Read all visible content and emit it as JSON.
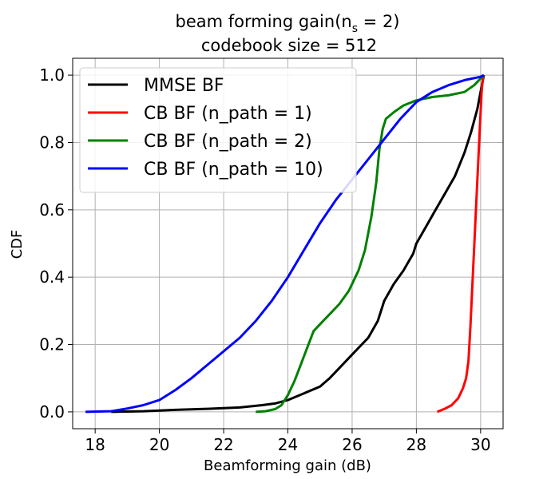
{
  "chart_data": {
    "type": "line",
    "title_prefix": "beam forming gain(n",
    "title_sub": "s",
    "title_suffix": " = 2)",
    "subtitle": "codebook size = 512",
    "xlabel": "Beamforming gain (dB)",
    "ylabel": "CDF",
    "xlim": [
      17.3,
      30.7
    ],
    "ylim": [
      -0.05,
      1.05
    ],
    "xticks": [
      18,
      20,
      22,
      24,
      26,
      28,
      30
    ],
    "yticks": [
      0.0,
      0.2,
      0.4,
      0.6,
      0.8,
      1.0
    ],
    "xtick_labels": [
      "18",
      "20",
      "22",
      "24",
      "26",
      "28",
      "30"
    ],
    "ytick_labels": [
      "0.0",
      "0.2",
      "0.4",
      "0.6",
      "0.8",
      "1.0"
    ],
    "grid": true,
    "legend_position": "upper-left",
    "series": [
      {
        "name": "MMSE BF",
        "color": "#000000",
        "points": [
          [
            18.5,
            0.0
          ],
          [
            19.5,
            0.002
          ],
          [
            20.5,
            0.006
          ],
          [
            21.5,
            0.009
          ],
          [
            22.5,
            0.013
          ],
          [
            23.2,
            0.02
          ],
          [
            23.6,
            0.025
          ],
          [
            24.0,
            0.035
          ],
          [
            24.5,
            0.055
          ],
          [
            25.0,
            0.075
          ],
          [
            25.3,
            0.1
          ],
          [
            25.6,
            0.13
          ],
          [
            26.0,
            0.17
          ],
          [
            26.5,
            0.22
          ],
          [
            26.8,
            0.27
          ],
          [
            27.0,
            0.33
          ],
          [
            27.3,
            0.38
          ],
          [
            27.6,
            0.42
          ],
          [
            27.9,
            0.47
          ],
          [
            28.0,
            0.5
          ],
          [
            28.3,
            0.55
          ],
          [
            28.6,
            0.6
          ],
          [
            28.9,
            0.65
          ],
          [
            29.2,
            0.7
          ],
          [
            29.5,
            0.77
          ],
          [
            29.7,
            0.83
          ],
          [
            29.9,
            0.9
          ],
          [
            30.0,
            0.95
          ],
          [
            30.1,
            1.0
          ]
        ]
      },
      {
        "name": "CB BF (n_path = 1)",
        "color": "#ff0000",
        "points": [
          [
            28.65,
            0.0
          ],
          [
            28.9,
            0.01
          ],
          [
            29.1,
            0.02
          ],
          [
            29.3,
            0.04
          ],
          [
            29.45,
            0.07
          ],
          [
            29.55,
            0.1
          ],
          [
            29.62,
            0.15
          ],
          [
            29.68,
            0.25
          ],
          [
            29.73,
            0.35
          ],
          [
            29.78,
            0.45
          ],
          [
            29.83,
            0.55
          ],
          [
            29.88,
            0.65
          ],
          [
            29.93,
            0.75
          ],
          [
            29.98,
            0.85
          ],
          [
            30.03,
            0.95
          ],
          [
            30.08,
            1.0
          ]
        ]
      },
      {
        "name": "CB BF (n_path = 2)",
        "color": "#008000",
        "points": [
          [
            23.0,
            0.0
          ],
          [
            23.3,
            0.002
          ],
          [
            23.6,
            0.008
          ],
          [
            23.8,
            0.02
          ],
          [
            24.0,
            0.05
          ],
          [
            24.2,
            0.09
          ],
          [
            24.4,
            0.14
          ],
          [
            24.6,
            0.19
          ],
          [
            24.8,
            0.24
          ],
          [
            25.0,
            0.26
          ],
          [
            25.3,
            0.29
          ],
          [
            25.6,
            0.32
          ],
          [
            25.9,
            0.36
          ],
          [
            26.2,
            0.42
          ],
          [
            26.4,
            0.48
          ],
          [
            26.6,
            0.58
          ],
          [
            26.75,
            0.68
          ],
          [
            26.85,
            0.78
          ],
          [
            26.95,
            0.84
          ],
          [
            27.05,
            0.87
          ],
          [
            27.3,
            0.89
          ],
          [
            27.6,
            0.91
          ],
          [
            28.0,
            0.925
          ],
          [
            28.5,
            0.935
          ],
          [
            29.0,
            0.94
          ],
          [
            29.5,
            0.95
          ],
          [
            29.8,
            0.97
          ],
          [
            30.0,
            0.99
          ],
          [
            30.1,
            1.0
          ]
        ]
      },
      {
        "name": "CB BF (n_path = 10)",
        "color": "#0000ff",
        "points": [
          [
            17.7,
            0.0
          ],
          [
            18.5,
            0.002
          ],
          [
            19.0,
            0.01
          ],
          [
            19.5,
            0.02
          ],
          [
            20.0,
            0.035
          ],
          [
            20.5,
            0.065
          ],
          [
            21.0,
            0.1
          ],
          [
            21.5,
            0.14
          ],
          [
            22.0,
            0.18
          ],
          [
            22.5,
            0.22
          ],
          [
            23.0,
            0.27
          ],
          [
            23.5,
            0.33
          ],
          [
            24.0,
            0.4
          ],
          [
            24.5,
            0.48
          ],
          [
            25.0,
            0.56
          ],
          [
            25.5,
            0.63
          ],
          [
            26.0,
            0.69
          ],
          [
            26.5,
            0.75
          ],
          [
            27.0,
            0.81
          ],
          [
            27.5,
            0.87
          ],
          [
            28.0,
            0.92
          ],
          [
            28.5,
            0.95
          ],
          [
            29.0,
            0.97
          ],
          [
            29.5,
            0.985
          ],
          [
            30.0,
            0.995
          ],
          [
            30.1,
            1.0
          ]
        ]
      }
    ]
  }
}
